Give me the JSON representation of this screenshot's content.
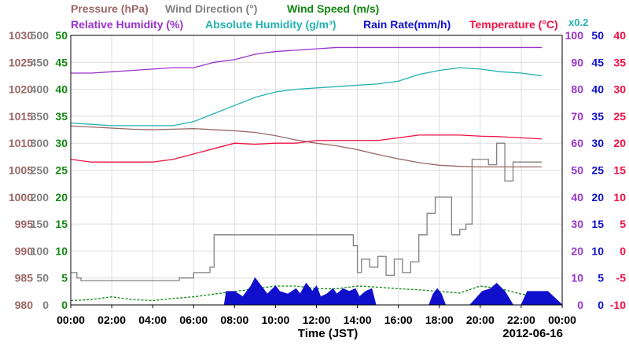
{
  "chart_data": {
    "type": "line",
    "date": "2012-06-16",
    "xlabel": "Time (JST)",
    "x_ticks": [
      "00:00",
      "02:00",
      "04:00",
      "06:00",
      "08:00",
      "10:00",
      "12:00",
      "14:00",
      "16:00",
      "18:00",
      "20:00",
      "22:00",
      "00:00"
    ],
    "grid": true,
    "legend": {
      "row1": [
        {
          "label": "Pressure (hPa)",
          "color": "#9b6666"
        },
        {
          "label": "Wind Direction (°)",
          "color": "#808080"
        },
        {
          "label": "Wind Speed (m/s)",
          "color": "#118811"
        }
      ],
      "row2": [
        {
          "label": "Relative Humidity (%)",
          "color": "#9933cc"
        },
        {
          "label": "Absolute Humidity (g/m³)",
          "color": "#22b2b2"
        },
        {
          "label": "Rain Rate(mm/h)",
          "color": "#1010cc"
        },
        {
          "label": "Temperature (°C)",
          "color": "#ee1144"
        }
      ],
      "scale_note": "x0.2"
    },
    "axes": {
      "pressure": {
        "range": [
          980,
          1030
        ],
        "ticks": [
          "1030",
          "1025",
          "1020",
          "1015",
          "1010",
          "1005",
          "1000",
          "995",
          "990",
          "985",
          "980"
        ],
        "color": "#9b6666"
      },
      "wind_direction": {
        "range": [
          0,
          500
        ],
        "ticks": [
          "500",
          "450",
          "400",
          "350",
          "300",
          "250",
          "200",
          "150",
          "100",
          "50",
          "0"
        ],
        "color": "#808080"
      },
      "wind_speed": {
        "range": [
          0,
          50
        ],
        "ticks": [
          "50",
          "45",
          "40",
          "35",
          "30",
          "25",
          "20",
          "15",
          "10",
          "5",
          "0"
        ],
        "color": "#118811"
      },
      "relative_humidity": {
        "range": [
          0,
          100
        ],
        "ticks": [
          "100",
          "90",
          "80",
          "70",
          "60",
          "50",
          "40",
          "30",
          "20",
          "10",
          "0"
        ],
        "color": "#9933cc"
      },
      "rain_rate": {
        "range": [
          0,
          50
        ],
        "ticks": [
          "50",
          "45",
          "40",
          "35",
          "30",
          "25",
          "20",
          "15",
          "10",
          "5",
          "0"
        ],
        "color": "#1010cc"
      },
      "temperature": {
        "range": [
          -10,
          40
        ],
        "ticks": [
          "40",
          "35",
          "30",
          "25",
          "20",
          "15",
          "10",
          "5",
          "0",
          "-5",
          "-10"
        ],
        "color": "#ee1144"
      }
    },
    "series": [
      {
        "name": "Relative Humidity (%)",
        "axis": "relative_humidity",
        "color": "#9933cc",
        "x": [
          0,
          1,
          2,
          3,
          4,
          5,
          6,
          6.5,
          7,
          8,
          9,
          10,
          11,
          12,
          13,
          14,
          15,
          16,
          17,
          18,
          19,
          20,
          21,
          22,
          23
        ],
        "y": [
          86,
          86,
          86.5,
          87,
          87.5,
          88,
          88,
          89,
          90,
          91,
          93,
          94,
          94.5,
          95,
          95.5,
          95.5,
          95.5,
          95.5,
          95.5,
          95.5,
          95.5,
          95.5,
          95.5,
          95.5,
          95.5
        ]
      },
      {
        "name": "Absolute Humidity (g/m³)",
        "axis": "relative_humidity",
        "color": "#22b2b2",
        "x": [
          0,
          1,
          2,
          3,
          4,
          5,
          6,
          7,
          8,
          9,
          10,
          11,
          12,
          13,
          14,
          15,
          16,
          17,
          18,
          19,
          20,
          21,
          22,
          23
        ],
        "y": [
          67.5,
          67,
          66.5,
          66.5,
          66.5,
          66.5,
          68,
          71,
          74,
          77,
          79,
          80,
          80.5,
          81,
          81.5,
          82,
          83,
          85.5,
          87,
          88,
          87.5,
          86.5,
          86,
          85
        ]
      },
      {
        "name": "Pressure (hPa)",
        "axis": "pressure",
        "color": "#9b6666",
        "x": [
          0,
          1,
          2,
          3,
          4,
          5,
          6,
          7,
          8,
          9,
          10,
          11,
          12,
          13,
          14,
          15,
          16,
          17,
          18,
          19,
          20,
          21,
          22,
          23
        ],
        "y": [
          1013.2,
          1013,
          1012.8,
          1012.6,
          1012.5,
          1012.6,
          1012.7,
          1012.5,
          1012.3,
          1012,
          1011.4,
          1010.6,
          1010,
          1009.5,
          1008.8,
          1007.9,
          1007.1,
          1006.4,
          1005.9,
          1005.7,
          1005.6,
          1005.6,
          1005.6,
          1005.6
        ]
      },
      {
        "name": "Temperature (°C)",
        "axis": "temperature",
        "color": "#ee1144",
        "x": [
          0,
          1,
          2,
          3,
          4,
          5,
          6,
          7,
          8,
          9,
          10,
          11,
          12,
          13,
          14,
          15,
          16,
          17,
          18,
          19,
          20,
          21,
          22,
          23
        ],
        "y": [
          17,
          16.5,
          16.5,
          16.5,
          16.5,
          17,
          18,
          19,
          20,
          19.8,
          20,
          20,
          20.5,
          20.5,
          20.5,
          20.5,
          21,
          21.5,
          21.5,
          21.5,
          21.3,
          21.2,
          21,
          20.8
        ]
      },
      {
        "name": "Wind Direction (°)",
        "axis": "wind_direction",
        "color": "#808080",
        "step": true,
        "x": [
          0,
          0.3,
          0.5,
          2,
          4,
          5.3,
          6,
          6.8,
          7,
          8,
          9,
          10,
          11,
          12,
          13,
          13.8,
          14,
          14.2,
          14.6,
          15,
          15.4,
          15.8,
          16.2,
          16.6,
          17,
          17.4,
          17.8,
          18.2,
          18.6,
          19,
          19.3,
          19.6,
          20,
          20.4,
          20.8,
          21.2,
          21.6,
          22,
          23
        ],
        "y": [
          60,
          50,
          45,
          45,
          45,
          50,
          60,
          70,
          130,
          130,
          130,
          130,
          130,
          130,
          130,
          110,
          60,
          85,
          70,
          90,
          55,
          85,
          60,
          80,
          130,
          170,
          200,
          200,
          130,
          140,
          150,
          270,
          270,
          260,
          300,
          230,
          265,
          265,
          265
        ]
      },
      {
        "name": "Wind Speed (m/s)",
        "axis": "wind_speed",
        "color": "#118811",
        "x": [
          0,
          1,
          2,
          3,
          4,
          5,
          6,
          7,
          8,
          9,
          10,
          11,
          12,
          13,
          14,
          15,
          16,
          17,
          18,
          19,
          20,
          21,
          22,
          23
        ],
        "y": [
          0.8,
          1,
          1.5,
          1,
          0.8,
          1.2,
          1.5,
          2,
          2.5,
          3,
          3.5,
          3.5,
          3,
          3,
          3.5,
          3.3,
          3,
          2.8,
          2.5,
          2.2,
          3.5,
          3,
          2,
          1.5
        ]
      },
      {
        "name": "Rain Rate(mm/h)",
        "axis": "rain_rate",
        "color": "#1010cc",
        "style": "area",
        "x": [
          0,
          7.5,
          7.6,
          8,
          8.4,
          8.8,
          9,
          9.2,
          9.6,
          10,
          10.2,
          10.6,
          11,
          11.2,
          11.5,
          11.8,
          12,
          12.2,
          12.5,
          12.8,
          13,
          13.3,
          13.6,
          13.9,
          14.1,
          14.4,
          14.7,
          14.9,
          17.5,
          17.7,
          17.9,
          18.1,
          18.3,
          19.5,
          20.1,
          20.5,
          20.8,
          21.2,
          21.6,
          22,
          22.3,
          22.6,
          23,
          23.3,
          24
        ],
        "y": [
          0,
          0,
          2.5,
          2.5,
          1.5,
          3.5,
          5,
          4,
          2,
          3.5,
          2.5,
          2,
          3,
          2,
          4,
          2.5,
          3.5,
          1.5,
          2,
          3,
          2,
          3,
          2.5,
          3,
          1.5,
          2.5,
          3,
          0,
          0,
          2,
          3,
          2,
          0,
          0,
          2.5,
          3,
          4,
          2.5,
          0,
          0,
          2.5,
          2.5,
          2.5,
          2.5,
          0
        ]
      }
    ]
  }
}
